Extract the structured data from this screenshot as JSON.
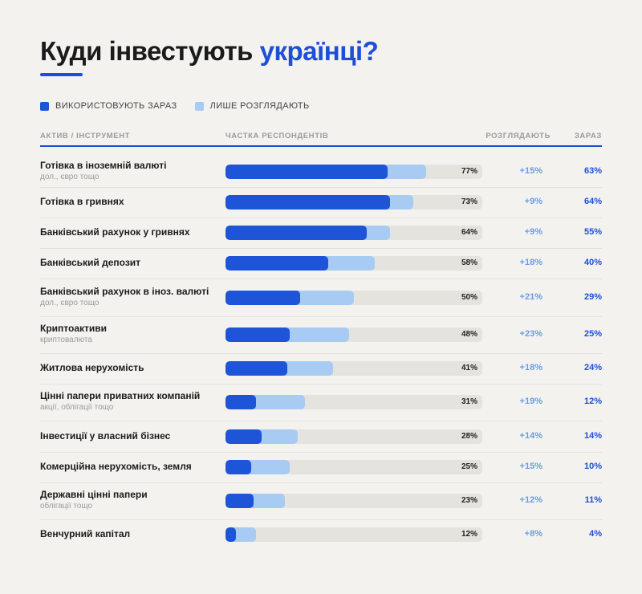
{
  "title": {
    "main": "Куди інвестують ",
    "accent": "українці?"
  },
  "legend": [
    {
      "label": "ВИКОРИСТОВУЮТЬ ЗАРАЗ",
      "color": "#1d54d8"
    },
    {
      "label": "ЛИШЕ РОЗГЛЯДАЮТЬ",
      "color": "#a8cbf3"
    }
  ],
  "header": {
    "asset": "АКТИВ / ІНСТРУМЕНТ",
    "share": "ЧАСТКА РЕСПОНДЕНТІВ",
    "consider": "РОЗГЛЯДАЮТЬ",
    "now": "ЗАРАЗ"
  },
  "chart_data": {
    "type": "bar",
    "orientation": "horizontal",
    "stacked": true,
    "title": "Куди інвестують українці?",
    "xlim": [
      0,
      100
    ],
    "unit": "%",
    "categories": [
      "Готівка в іноземній валюті",
      "Готівка в гривнях",
      "Банківський рахунок у гривнях",
      "Банківський депозит",
      "Банківський рахунок в іноз. валюті",
      "Криптоактиви",
      "Житлова нерухомість",
      "Цінні папери приватних компаній",
      "Інвестиції у власний бізнес",
      "Комерційна нерухомість, земля",
      "Державні цінні папери",
      "Венчурний капітал"
    ],
    "subtitles": [
      "дол., євро тощо",
      "",
      "",
      "",
      "дол., євро тощо",
      "криптовалюта",
      "",
      "акції, облігації тощо",
      "",
      "",
      "облігації тощо",
      ""
    ],
    "series": [
      {
        "name": "ВИКОРИСТОВУЮТЬ ЗАРАЗ",
        "values": [
          63,
          64,
          55,
          40,
          29,
          25,
          24,
          12,
          14,
          10,
          11,
          4
        ]
      },
      {
        "name": "ЛИШЕ РОЗГЛЯДАЮТЬ",
        "values": [
          15,
          9,
          9,
          18,
          21,
          23,
          18,
          19,
          14,
          15,
          12,
          8
        ]
      }
    ],
    "total_labels": [
      "77%",
      "73%",
      "64%",
      "58%",
      "50%",
      "48%",
      "41%",
      "31%",
      "28%",
      "25%",
      "23%",
      "12%"
    ],
    "consider_labels": [
      "+15%",
      "+9%",
      "+9%",
      "+18%",
      "+21%",
      "+23%",
      "+18%",
      "+19%",
      "+14%",
      "+15%",
      "+12%",
      "+8%"
    ],
    "now_labels": [
      "63%",
      "64%",
      "55%",
      "40%",
      "29%",
      "25%",
      "24%",
      "12%",
      "14%",
      "10%",
      "11%",
      "4%"
    ]
  }
}
